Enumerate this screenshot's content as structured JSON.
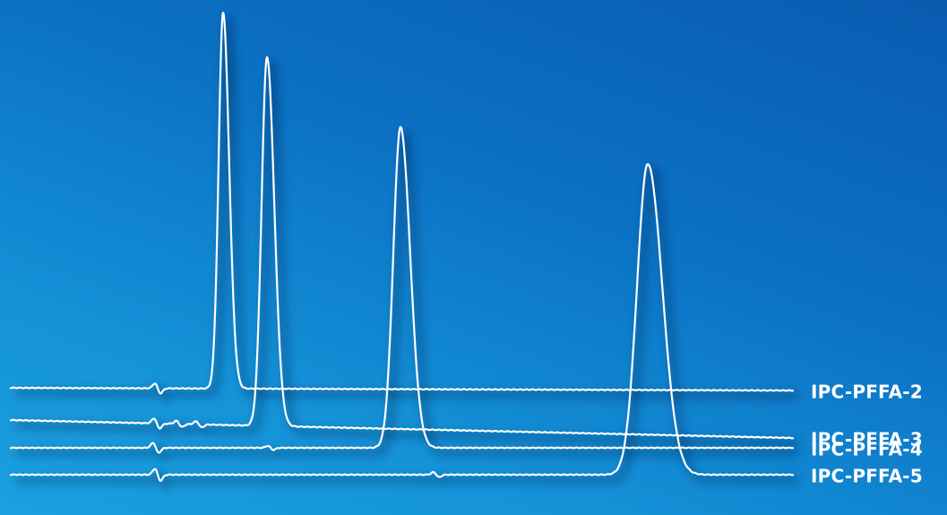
{
  "chart_data": {
    "type": "line",
    "title": "",
    "xlabel": "",
    "ylabel": "",
    "grid": false,
    "legend": "right, inline with each trace",
    "stroke_color": "#ffffff",
    "background_colors": [
      "#0a5bb0",
      "#1aa0e0"
    ],
    "series": [
      {
        "name": "IPC-PFFA-2",
        "baseline_start": 0,
        "baseline_end": -3,
        "peak": {
          "x": 249,
          "height": 420,
          "width": 5
        },
        "artifacts": [
          {
            "x": 176,
            "amp": -10
          }
        ]
      },
      {
        "name": "IPC-PFFA-3",
        "baseline_start": 0,
        "baseline_end": -20,
        "peak": {
          "x": 298,
          "height": 412,
          "width": 6
        },
        "artifacts": [
          {
            "x": 175,
            "amp": -10
          },
          {
            "x": 200,
            "amp": -6
          },
          {
            "x": 222,
            "amp": -6
          }
        ]
      },
      {
        "name": "IPC-PFFA-4",
        "baseline_start": 0,
        "baseline_end": 0,
        "peak": {
          "x": 447,
          "height": 358,
          "width": 8
        },
        "artifacts": [
          {
            "x": 174,
            "amp": -10
          },
          {
            "x": 302,
            "amp": -4
          }
        ]
      },
      {
        "name": "IPC-PFFA-5",
        "baseline_start": 0,
        "baseline_end": 0,
        "peak": {
          "x": 723,
          "height": 347,
          "width": 12
        },
        "artifacts": [
          {
            "x": 176,
            "amp": -12
          },
          {
            "x": 487,
            "amp": -5
          }
        ]
      }
    ]
  }
}
